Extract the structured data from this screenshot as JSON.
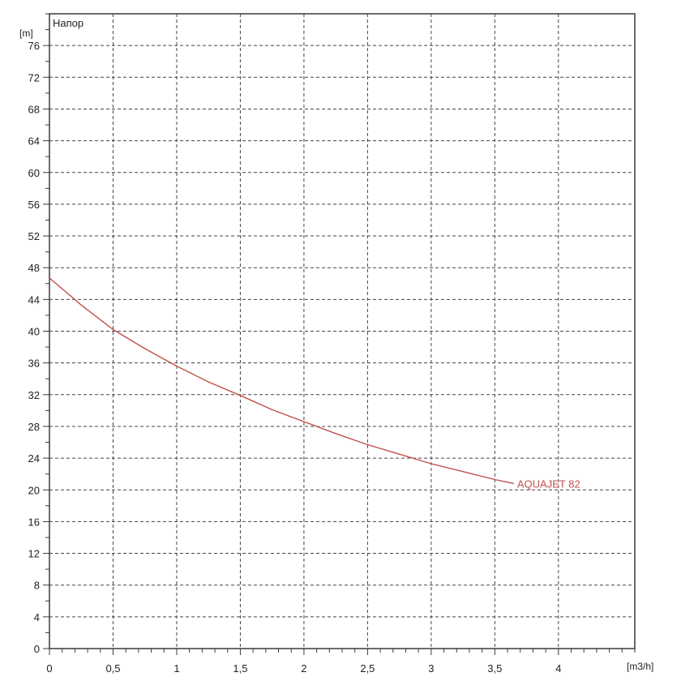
{
  "chart_data": {
    "type": "line",
    "title": "Напор",
    "ylabel": "[m]",
    "xlabel": "[m3/h]",
    "xlim": [
      0,
      4.6
    ],
    "ylim": [
      0,
      80
    ],
    "xticks": [
      0,
      0.5,
      1,
      1.5,
      2,
      2.5,
      3,
      3.5,
      4
    ],
    "xtick_labels": [
      "0",
      "0,5",
      "1",
      "1,5",
      "2",
      "2,5",
      "3",
      "3,5",
      "4"
    ],
    "yticks": [
      0,
      4,
      8,
      12,
      16,
      20,
      24,
      28,
      32,
      36,
      40,
      44,
      48,
      52,
      56,
      60,
      64,
      68,
      72,
      76
    ],
    "ytick_labels": [
      "0",
      "4",
      "8",
      "12",
      "16",
      "20",
      "24",
      "28",
      "32",
      "36",
      "40",
      "44",
      "48",
      "52",
      "56",
      "60",
      "64",
      "68",
      "72",
      "76"
    ],
    "x_minor_step": 0.1,
    "y_minor_step": 2,
    "grid": true,
    "series": [
      {
        "name": "AQUAJET 82",
        "color": "#c0504d",
        "x": [
          0,
          0.25,
          0.5,
          0.75,
          1,
          1.25,
          1.5,
          1.75,
          2,
          2.25,
          2.5,
          2.75,
          3,
          3.25,
          3.5,
          3.65
        ],
        "y": [
          46.7,
          43.3,
          40.2,
          37.8,
          35.6,
          33.6,
          31.9,
          30.1,
          28.6,
          27.1,
          25.7,
          24.5,
          23.3,
          22.3,
          21.3,
          20.8
        ]
      }
    ]
  }
}
